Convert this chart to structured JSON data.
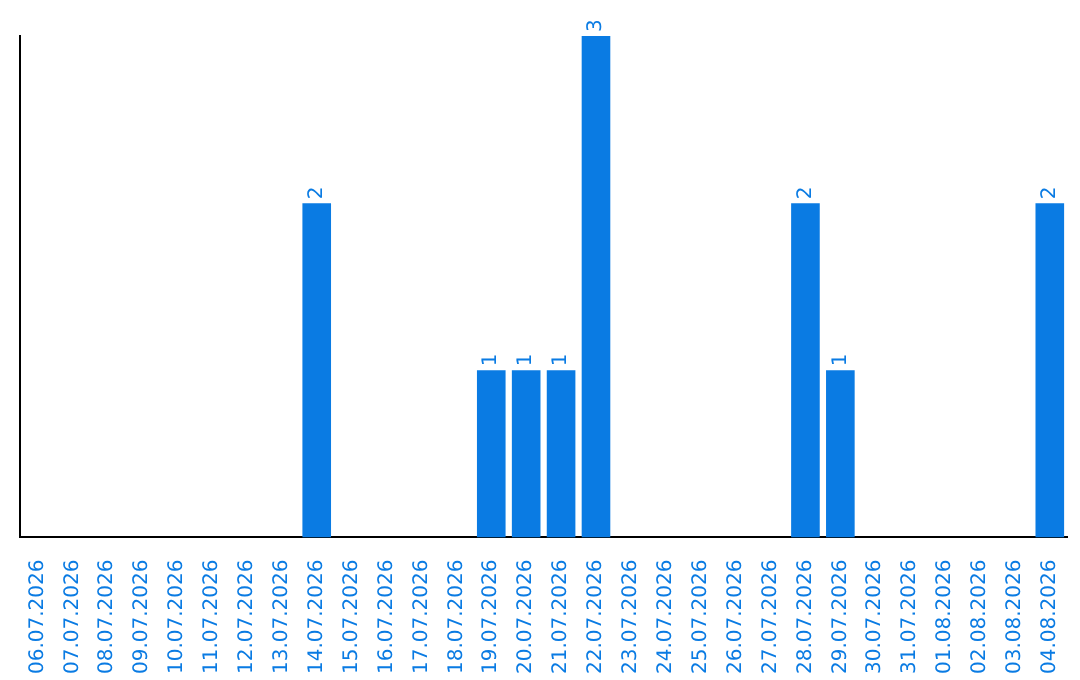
{
  "chart_data": {
    "type": "bar",
    "categories": [
      "06.07.2026",
      "07.07.2026",
      "08.07.2026",
      "09.07.2026",
      "10.07.2026",
      "11.07.2026",
      "12.07.2026",
      "13.07.2026",
      "14.07.2026",
      "15.07.2026",
      "16.07.2026",
      "17.07.2026",
      "18.07.2026",
      "19.07.2026",
      "20.07.2026",
      "21.07.2026",
      "22.07.2026",
      "23.07.2026",
      "24.07.2026",
      "25.07.2026",
      "26.07.2026",
      "27.07.2026",
      "28.07.2026",
      "29.07.2026",
      "30.07.2026",
      "31.07.2026",
      "01.08.2026",
      "02.08.2026",
      "03.08.2026",
      "04.08.2026"
    ],
    "values": [
      0,
      0,
      0,
      0,
      0,
      0,
      0,
      0,
      2,
      0,
      0,
      0,
      0,
      1,
      1,
      1,
      3,
      0,
      0,
      0,
      0,
      0,
      2,
      1,
      0,
      0,
      0,
      0,
      0,
      2
    ],
    "value_labels": [
      null,
      null,
      null,
      null,
      null,
      null,
      null,
      null,
      "2",
      null,
      null,
      null,
      null,
      "1",
      "1",
      "1",
      "3",
      null,
      null,
      null,
      null,
      null,
      "2",
      "1",
      null,
      null,
      null,
      null,
      null,
      "2"
    ],
    "color": "#0a7be3",
    "ylim": [
      0,
      3
    ],
    "tick_labels": "x"
  }
}
